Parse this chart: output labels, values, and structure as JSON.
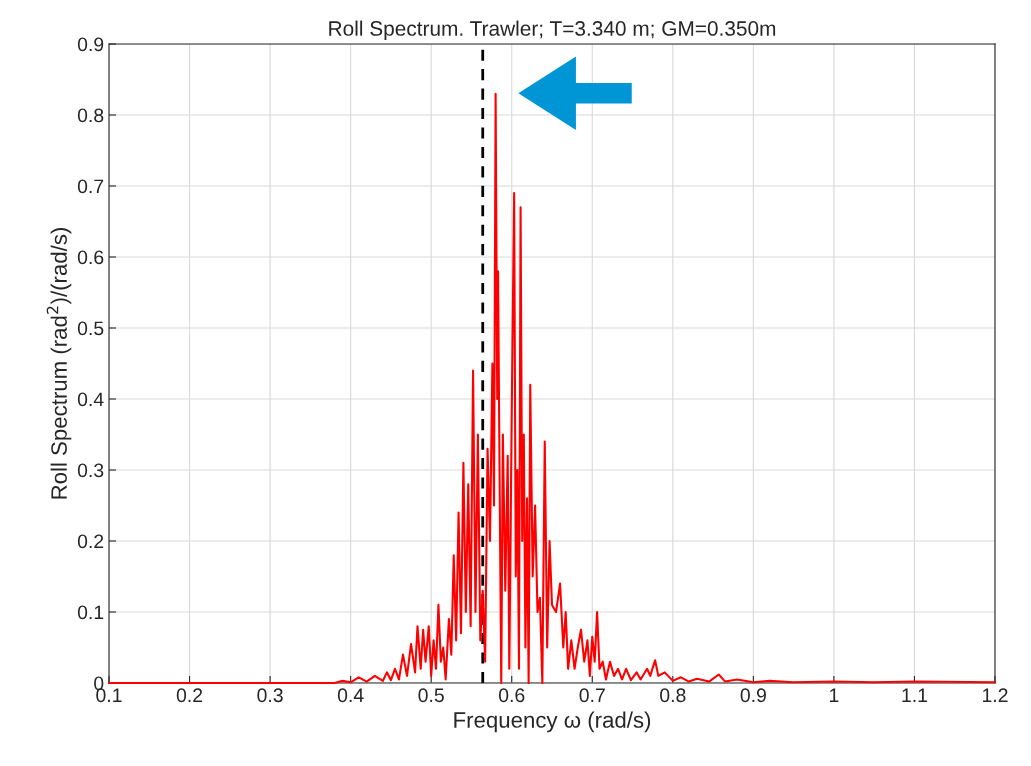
{
  "chart_data": {
    "type": "line",
    "title": "Roll Spectrum. Trawler; T=3.340 m; GM=0.350m",
    "xlabel": "Frequency ω (rad/s)",
    "ylabel": "Roll Spectrum (rad$^{2}$)/(rad/s)",
    "series": [
      {
        "color": "#ff0000",
        "x": [
          0.1,
          0.2,
          0.3,
          0.38,
          0.39,
          0.4,
          0.41,
          0.42,
          0.43,
          0.44,
          0.445,
          0.45,
          0.455,
          0.46,
          0.465,
          0.47,
          0.475,
          0.48,
          0.483,
          0.487,
          0.49,
          0.493,
          0.497,
          0.5,
          0.503,
          0.506,
          0.509,
          0.512,
          0.515,
          0.518,
          0.522,
          0.525,
          0.528,
          0.531,
          0.534,
          0.537,
          0.54,
          0.543,
          0.546,
          0.549,
          0.552,
          0.555,
          0.558,
          0.561,
          0.564,
          0.567,
          0.57,
          0.573,
          0.576,
          0.578,
          0.58,
          0.582,
          0.583,
          0.585,
          0.587,
          0.589,
          0.592,
          0.595,
          0.597,
          0.6,
          0.603,
          0.605,
          0.607,
          0.609,
          0.611,
          0.613,
          0.615,
          0.617,
          0.619,
          0.621,
          0.623,
          0.626,
          0.629,
          0.632,
          0.635,
          0.638,
          0.641,
          0.644,
          0.647,
          0.65,
          0.655,
          0.66,
          0.664,
          0.667,
          0.67,
          0.674,
          0.678,
          0.682,
          0.686,
          0.69,
          0.694,
          0.697,
          0.7,
          0.703,
          0.706,
          0.709,
          0.713,
          0.717,
          0.722,
          0.727,
          0.732,
          0.737,
          0.742,
          0.748,
          0.755,
          0.76,
          0.768,
          0.772,
          0.778,
          0.782,
          0.79,
          0.8,
          0.81,
          0.82,
          0.83,
          0.845,
          0.857,
          0.865,
          0.88,
          0.9,
          0.92,
          0.95,
          1.0,
          1.05,
          1.1,
          1.2
        ],
        "values": [
          0,
          0,
          0,
          0,
          0.003,
          0.001,
          0.008,
          0.002,
          0.01,
          0.003,
          0.015,
          0.004,
          0.02,
          0.005,
          0.04,
          0.01,
          0.055,
          0.015,
          0.08,
          0.02,
          0.075,
          0.03,
          0.08,
          0.01,
          0.06,
          0.02,
          0.11,
          0.03,
          0.05,
          0.005,
          0.09,
          0.04,
          0.18,
          0.06,
          0.24,
          0.07,
          0.31,
          0.1,
          0.28,
          0.08,
          0.44,
          0.1,
          0.35,
          0.06,
          0.13,
          0.03,
          0.33,
          0.2,
          0.45,
          0.25,
          0.83,
          0.4,
          0.58,
          0.28,
          0.0,
          0.35,
          0.13,
          0.32,
          0.02,
          0.38,
          0.69,
          0.15,
          0.3,
          0.02,
          0.67,
          0.2,
          0.35,
          0.05,
          0.26,
          0.0,
          0.42,
          0.15,
          0.25,
          0.1,
          0.12,
          0.0,
          0.34,
          0.05,
          0.2,
          0.11,
          0.1,
          0.14,
          0.05,
          0.1,
          0.02,
          0.06,
          0.02,
          0.05,
          0.075,
          0.03,
          0.06,
          0.01,
          0.065,
          0.03,
          0.1,
          0.02,
          0.03,
          0.005,
          0.03,
          0.01,
          0.02,
          0.005,
          0.02,
          0.004,
          0.015,
          0.005,
          0.02,
          0.01,
          0.032,
          0.01,
          0.015,
          0.003,
          0.008,
          0.002,
          0.006,
          0.002,
          0.012,
          0.002,
          0.005,
          0.001,
          0.003,
          0.001,
          0.002,
          0.001,
          0.002,
          0.001
        ]
      }
    ],
    "xlim": [
      0.1,
      1.2
    ],
    "ylim": [
      0,
      0.9
    ],
    "xticks": [
      0.1,
      0.2,
      0.3,
      0.4,
      0.5,
      0.6,
      0.7,
      0.8,
      0.9,
      {
        "value": 1.0,
        "label": "1"
      },
      1.1,
      1.2
    ],
    "yticks": [
      0,
      0.1,
      0.2,
      0.3,
      0.4,
      0.5,
      0.6,
      0.7,
      0.8,
      0.9
    ],
    "ref_lines": [
      {
        "axis": "x",
        "value": 0.564,
        "color": "#000000",
        "line_style": "dashed"
      }
    ],
    "grid": true,
    "line_style": "solid",
    "marker": "none"
  }
}
